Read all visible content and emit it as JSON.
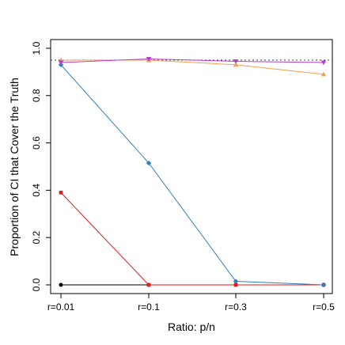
{
  "chart_data": {
    "type": "line",
    "xlabel": "Ratio: p/n",
    "ylabel": "Proportion of CI that Cover the Truth",
    "categories": [
      "r=0.01",
      "r=0.1",
      "r=0.3",
      "r=0.5"
    ],
    "ylim": [
      0.0,
      1.0
    ],
    "yticks": [
      "0.0",
      "0.2",
      "0.4",
      "0.6",
      "0.8",
      "1.0"
    ],
    "reference_line": {
      "y": 0.95,
      "style": "dotted",
      "color": "#555555"
    },
    "grid": false,
    "series": [
      {
        "color": "#000000",
        "marker": "circle",
        "values": [
          0.0,
          0.0,
          0.0,
          0.0
        ]
      },
      {
        "color": "#e31a1c",
        "marker": "square",
        "values": [
          0.39,
          0.0,
          0.0,
          0.0
        ]
      },
      {
        "color": "#2e7fbf",
        "marker": "diamond",
        "values": [
          0.93,
          0.515,
          0.015,
          0.0
        ]
      },
      {
        "color": "#f0a050",
        "marker": "triangle-up",
        "values": [
          0.95,
          0.95,
          0.93,
          0.89
        ]
      },
      {
        "color": "#b83cd6",
        "marker": "triangle-down",
        "values": [
          0.94,
          0.955,
          0.945,
          0.94
        ]
      }
    ]
  }
}
